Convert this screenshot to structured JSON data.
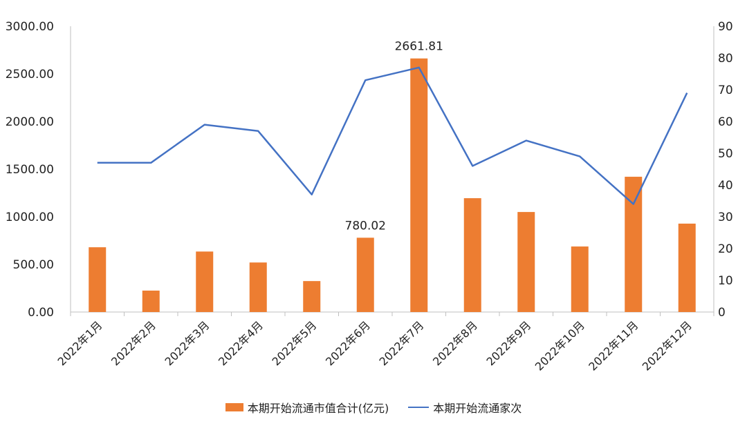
{
  "chart_data": {
    "type": "bar",
    "categories": [
      "2022年1月",
      "2022年2月",
      "2022年3月",
      "2022年4月",
      "2022年5月",
      "2022年6月",
      "2022年7月",
      "2022年8月",
      "2022年9月",
      "2022年10月",
      "2022年11月",
      "2022年12月"
    ],
    "series": [
      {
        "name": "本期开始流通市值合计(亿元)",
        "type": "bar",
        "axis": "left",
        "color": "#ED7D31",
        "values": [
          680,
          225,
          635,
          520,
          325,
          780.02,
          2661.81,
          1195,
          1050,
          688,
          1420,
          928
        ]
      },
      {
        "name": "本期开始流通家次",
        "type": "line",
        "axis": "right",
        "color": "#4472C4",
        "values": [
          47,
          47,
          59,
          57,
          37,
          73,
          77,
          46,
          54,
          49,
          34,
          69
        ]
      }
    ],
    "y_left": {
      "lim": [
        0,
        3000
      ],
      "ticks": [
        "0.00",
        "500.00",
        "1000.00",
        "1500.00",
        "2000.00",
        "2500.00",
        "3000.00"
      ]
    },
    "y_right": {
      "lim": [
        0,
        90
      ],
      "ticks": [
        "0",
        "10",
        "20",
        "30",
        "40",
        "50",
        "60",
        "70",
        "80",
        "90"
      ]
    },
    "data_labels": [
      {
        "index": 5,
        "text": "780.02"
      },
      {
        "index": 6,
        "text": "2661.81"
      }
    ],
    "grid": false,
    "legend_position": "bottom"
  }
}
